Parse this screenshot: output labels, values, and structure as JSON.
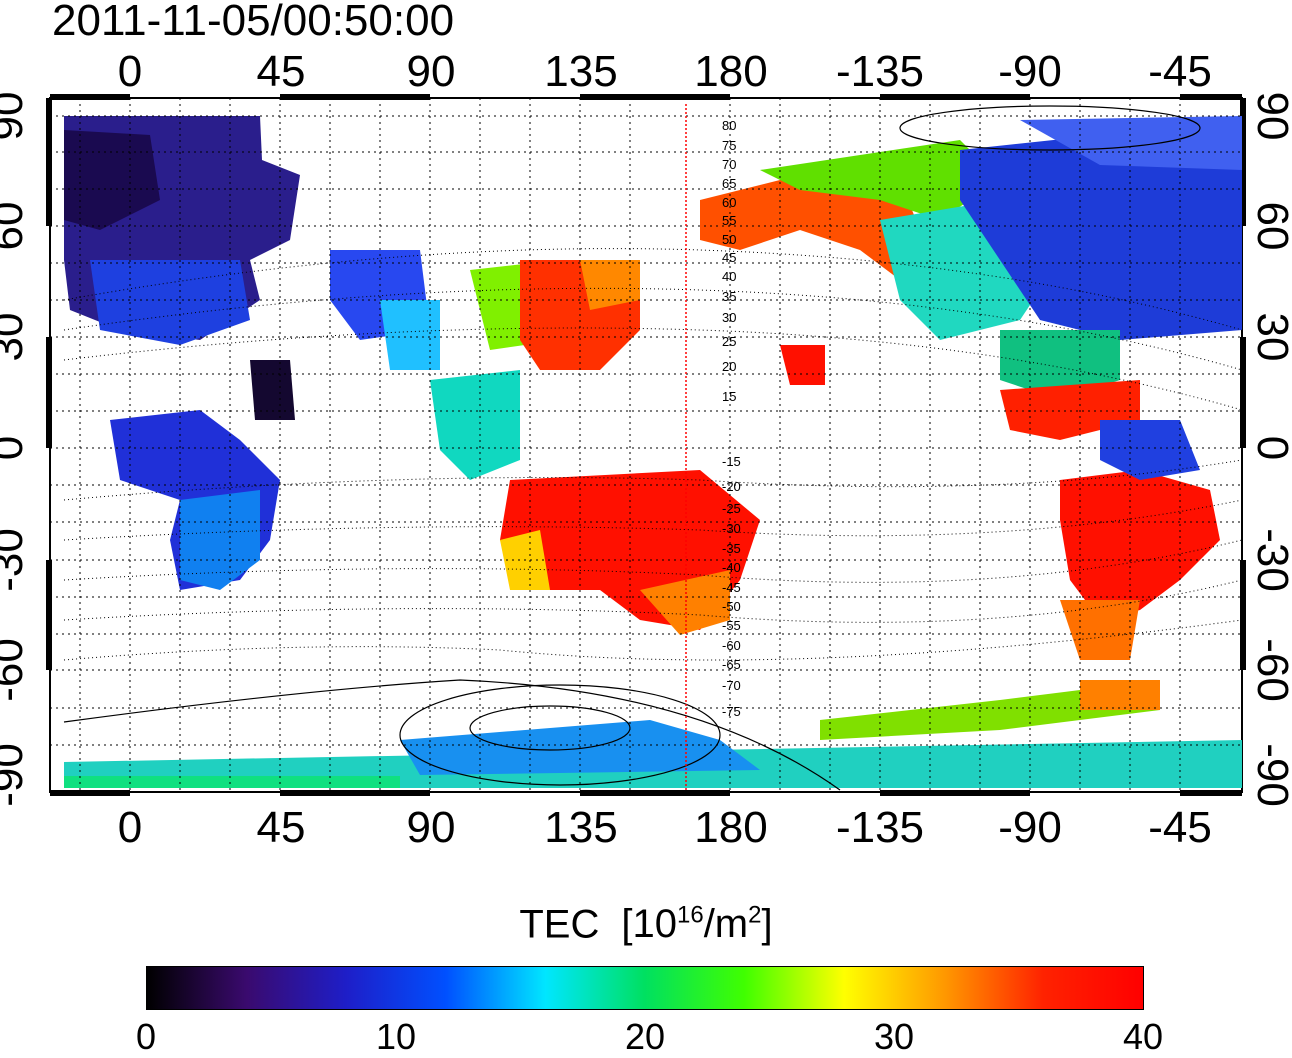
{
  "title": "2011-11-05/00:50:00",
  "lon_ticks": [
    "0",
    "45",
    "90",
    "135",
    "180",
    "-135",
    "-90",
    "-45"
  ],
  "lon_tick_values": [
    0,
    45,
    90,
    135,
    180,
    -135,
    -90,
    -45
  ],
  "lat_ticks": [
    "90",
    "60",
    "30",
    "0",
    "-30",
    "-60",
    "-90"
  ],
  "lat_tick_values": [
    90,
    60,
    30,
    0,
    -30,
    -60,
    -90
  ],
  "contour_labels": [
    "80",
    "75",
    "70",
    "65",
    "60",
    "55",
    "50",
    "45",
    "40",
    "35",
    "30",
    "25",
    "20",
    "15",
    "-15",
    "-20",
    "-25",
    "-30",
    "-35",
    "-40",
    "-45",
    "-50",
    "-55",
    "-60",
    "-65",
    "-70",
    "-75"
  ],
  "colorbar": {
    "title": "TEC",
    "unit": "[10",
    "unit_exp": "16",
    "unit_mid": "/m",
    "unit_exp2": "2",
    "unit_end": "]",
    "tick_labels": [
      "0",
      "10",
      "20",
      "30",
      "40"
    ],
    "tick_values": [
      0,
      10,
      20,
      30,
      40
    ],
    "range": [
      0,
      40
    ]
  },
  "colors": {
    "colormap": [
      "#000000",
      "#3a0a6e",
      "#1e1ec8",
      "#0050ff",
      "#00e6ff",
      "#00e060",
      "#40ff00",
      "#ffff00",
      "#ff9900",
      "#ff2200",
      "#ff0000"
    ],
    "terminator_line": "#ff0000"
  }
}
